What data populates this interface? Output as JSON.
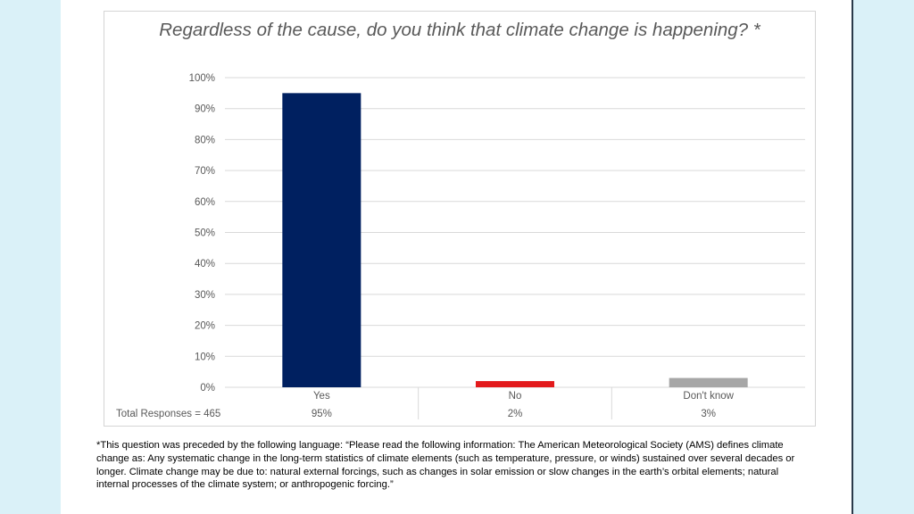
{
  "colors": {
    "background": "#daf1f8",
    "yes": "#002060",
    "no": "#e31a1c",
    "dont_know": "#a6a6a6",
    "grid": "#d9d9d9"
  },
  "chart_data": {
    "type": "bar",
    "title": "Regardless of the cause, do you think that climate change is happening? *",
    "categories": [
      "Yes",
      "No",
      "Don't know"
    ],
    "values": [
      95,
      2,
      3
    ],
    "unit": "%",
    "ylim": [
      0,
      100
    ],
    "ytick_labels": [
      "0%",
      "10%",
      "20%",
      "30%",
      "40%",
      "50%",
      "60%",
      "70%",
      "80%",
      "90%",
      "100%"
    ],
    "xlabel": "",
    "ylabel": "",
    "grid": true,
    "bar_colors": [
      "#002060",
      "#e31a1c",
      "#a6a6a6"
    ],
    "data_table": {
      "row_label": "Total Responses = 465",
      "values": [
        "95%",
        "2%",
        "3%"
      ]
    }
  },
  "footnote": "*This question was preceded by the following language: “Please read the following information: The American Meteorological Society (AMS) defines climate change as: Any systematic change in the long-term statistics of climate elements (such as temperature, pressure, or winds) sustained over several decades or longer.  Climate change may be due to: natural external forcings, such as changes in solar emission or slow changes in the earth’s orbital elements; natural internal processes of the climate system; or anthropogenic forcing.”"
}
